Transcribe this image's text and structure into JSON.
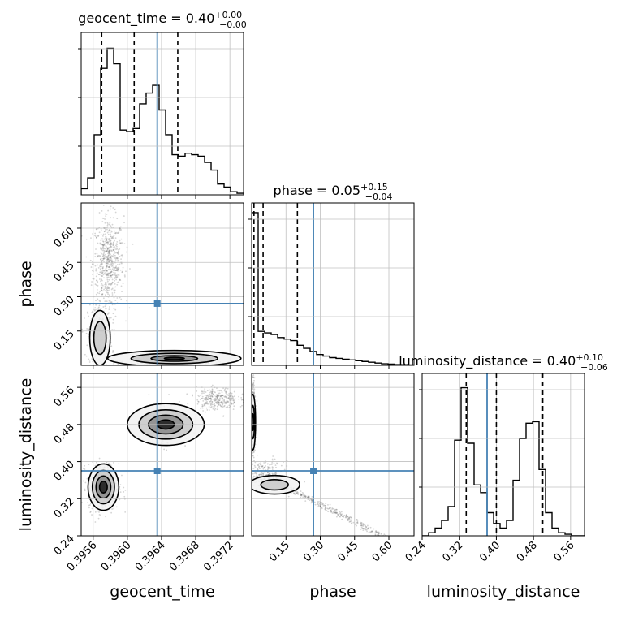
{
  "chart_data": {
    "type": "corner",
    "parameters": [
      "geocent_time",
      "phase",
      "luminosity_distance"
    ],
    "truths": {
      "geocent_time": 0.39635,
      "phase": 0.27,
      "luminosity_distance": 0.38
    },
    "colors": {
      "truth": "#4682b4",
      "hist": "#000000",
      "grid": "#c0c0c0",
      "scatter": "#555555"
    },
    "titles": [
      {
        "param": "geocent_time",
        "name": "geocent_time",
        "value": "0.40",
        "plus": "+0.00",
        "minus": "−0.00"
      },
      {
        "param": "phase",
        "name": "phase",
        "value": "0.05",
        "plus": "+0.15",
        "minus": "−0.04"
      },
      {
        "param": "luminosity_distance",
        "name": "luminosity_distance",
        "value": "0.40",
        "plus": "+0.10",
        "minus": "−0.06"
      }
    ],
    "axes": {
      "geocent_time": {
        "range": [
          0.39546,
          0.39736
        ],
        "ticks": [
          0.3956,
          0.396,
          0.3964,
          0.3968,
          0.3972
        ],
        "tick_labels": [
          "0.3956",
          "0.3960",
          "0.3964",
          "0.3968",
          "0.3972"
        ],
        "label": "geocent_time"
      },
      "phase": {
        "range": [
          0.0,
          0.71
        ],
        "ticks": [
          0.15,
          0.3,
          0.45,
          0.6
        ],
        "tick_labels": [
          "0.15",
          "0.30",
          "0.45",
          "0.60"
        ],
        "label": "phase"
      },
      "luminosity_distance": {
        "range": [
          0.24,
          0.59
        ],
        "ticks": [
          0.24,
          0.32,
          0.4,
          0.48,
          0.56
        ],
        "tick_labels": [
          "0.24",
          "0.32",
          "0.40",
          "0.48",
          "0.56"
        ],
        "label": "luminosity_distance"
      }
    },
    "histograms": {
      "geocent_time": {
        "quantiles": [
          0.3957,
          0.39608,
          0.39659
        ],
        "heights": [
          0.04,
          0.11,
          0.39,
          0.82,
          0.95,
          0.85,
          0.42,
          0.41,
          0.43,
          0.59,
          0.66,
          0.71,
          0.55,
          0.39,
          0.26,
          0.25,
          0.27,
          0.26,
          0.25,
          0.21,
          0.16,
          0.07,
          0.05,
          0.02,
          0.01
        ]
      },
      "phase": {
        "quantiles": [
          0.01,
          0.05,
          0.2
        ],
        "heights": [
          0.99,
          0.22,
          0.21,
          0.2,
          0.18,
          0.17,
          0.16,
          0.13,
          0.11,
          0.09,
          0.07,
          0.06,
          0.05,
          0.045,
          0.04,
          0.035,
          0.03,
          0.025,
          0.02,
          0.015,
          0.01,
          0.008,
          0.005,
          0.004,
          0.003
        ]
      },
      "luminosity_distance": {
        "quantiles": [
          0.335,
          0.4,
          0.5
        ],
        "heights": [
          0.0,
          0.02,
          0.05,
          0.1,
          0.19,
          0.62,
          0.96,
          0.6,
          0.33,
          0.28,
          0.15,
          0.08,
          0.05,
          0.1,
          0.36,
          0.63,
          0.73,
          0.74,
          0.43,
          0.15,
          0.05,
          0.02,
          0.01,
          0.0,
          0.0
        ]
      }
    },
    "scatter_clusters": [
      {
        "x": "geocent_time",
        "y": "phase",
        "cx": 0.39578,
        "cy": 0.45,
        "sx": 9e-05,
        "sy": 0.1,
        "n": 650
      },
      {
        "x": "geocent_time",
        "y": "phase",
        "cx": 0.39568,
        "cy": 0.13,
        "sx": 7e-05,
        "sy": 0.07,
        "n": 350
      },
      {
        "x": "geocent_time",
        "y": "phase",
        "cx": 0.3965,
        "cy": 0.02,
        "sx": 0.00025,
        "sy": 0.015,
        "n": 500
      },
      {
        "x": "geocent_time",
        "y": "luminosity_distance",
        "cx": 0.39572,
        "cy": 0.345,
        "sx": 9e-05,
        "sy": 0.025,
        "n": 500
      },
      {
        "x": "geocent_time",
        "y": "luminosity_distance",
        "cx": 0.39645,
        "cy": 0.48,
        "sx": 0.0001,
        "sy": 0.018,
        "n": 450
      },
      {
        "x": "geocent_time",
        "y": "luminosity_distance",
        "cx": 0.39705,
        "cy": 0.535,
        "sx": 0.00012,
        "sy": 0.012,
        "n": 300
      },
      {
        "x": "phase",
        "y": "luminosity_distance",
        "cx": 0.005,
        "cy": 0.5,
        "sx": 0.006,
        "sy": 0.05,
        "n": 300
      },
      {
        "x": "phase",
        "y": "luminosity_distance",
        "cx": 0.06,
        "cy": 0.37,
        "sx": 0.04,
        "sy": 0.015,
        "n": 250
      },
      {
        "x": "phase",
        "y": "luminosity_distance",
        "cx": 0.4,
        "cy": 0.3,
        "sx": 0.15,
        "sy": 0.01,
        "n": 450
      }
    ],
    "contour_blobs": [
      {
        "x": "geocent_time",
        "y": "phase",
        "cx": 0.39568,
        "cy": 0.12,
        "rx": 0.00012,
        "ry": 0.12,
        "levels": [
          1.0,
          0.6
        ]
      },
      {
        "x": "geocent_time",
        "y": "phase",
        "cx": 0.39655,
        "cy": 0.03,
        "rx": 0.00078,
        "ry": 0.035,
        "levels": [
          1.0,
          0.65,
          0.35,
          0.15
        ]
      },
      {
        "x": "geocent_time",
        "y": "luminosity_distance",
        "cx": 0.39572,
        "cy": 0.345,
        "rx": 0.00018,
        "ry": 0.05,
        "levels": [
          1.0,
          0.72,
          0.48,
          0.25
        ]
      },
      {
        "x": "geocent_time",
        "y": "luminosity_distance",
        "cx": 0.39645,
        "cy": 0.48,
        "rx": 0.00045,
        "ry": 0.045,
        "levels": [
          1.0,
          0.7,
          0.45,
          0.22
        ]
      },
      {
        "x": "phase",
        "y": "luminosity_distance",
        "cx": 0.005,
        "cy": 0.485,
        "rx": 0.012,
        "ry": 0.06,
        "levels": [
          1.0,
          0.6,
          0.3
        ]
      },
      {
        "x": "phase",
        "y": "luminosity_distance",
        "cx": 0.1,
        "cy": 0.35,
        "rx": 0.11,
        "ry": 0.02,
        "levels": [
          1.0,
          0.55
        ]
      }
    ]
  }
}
